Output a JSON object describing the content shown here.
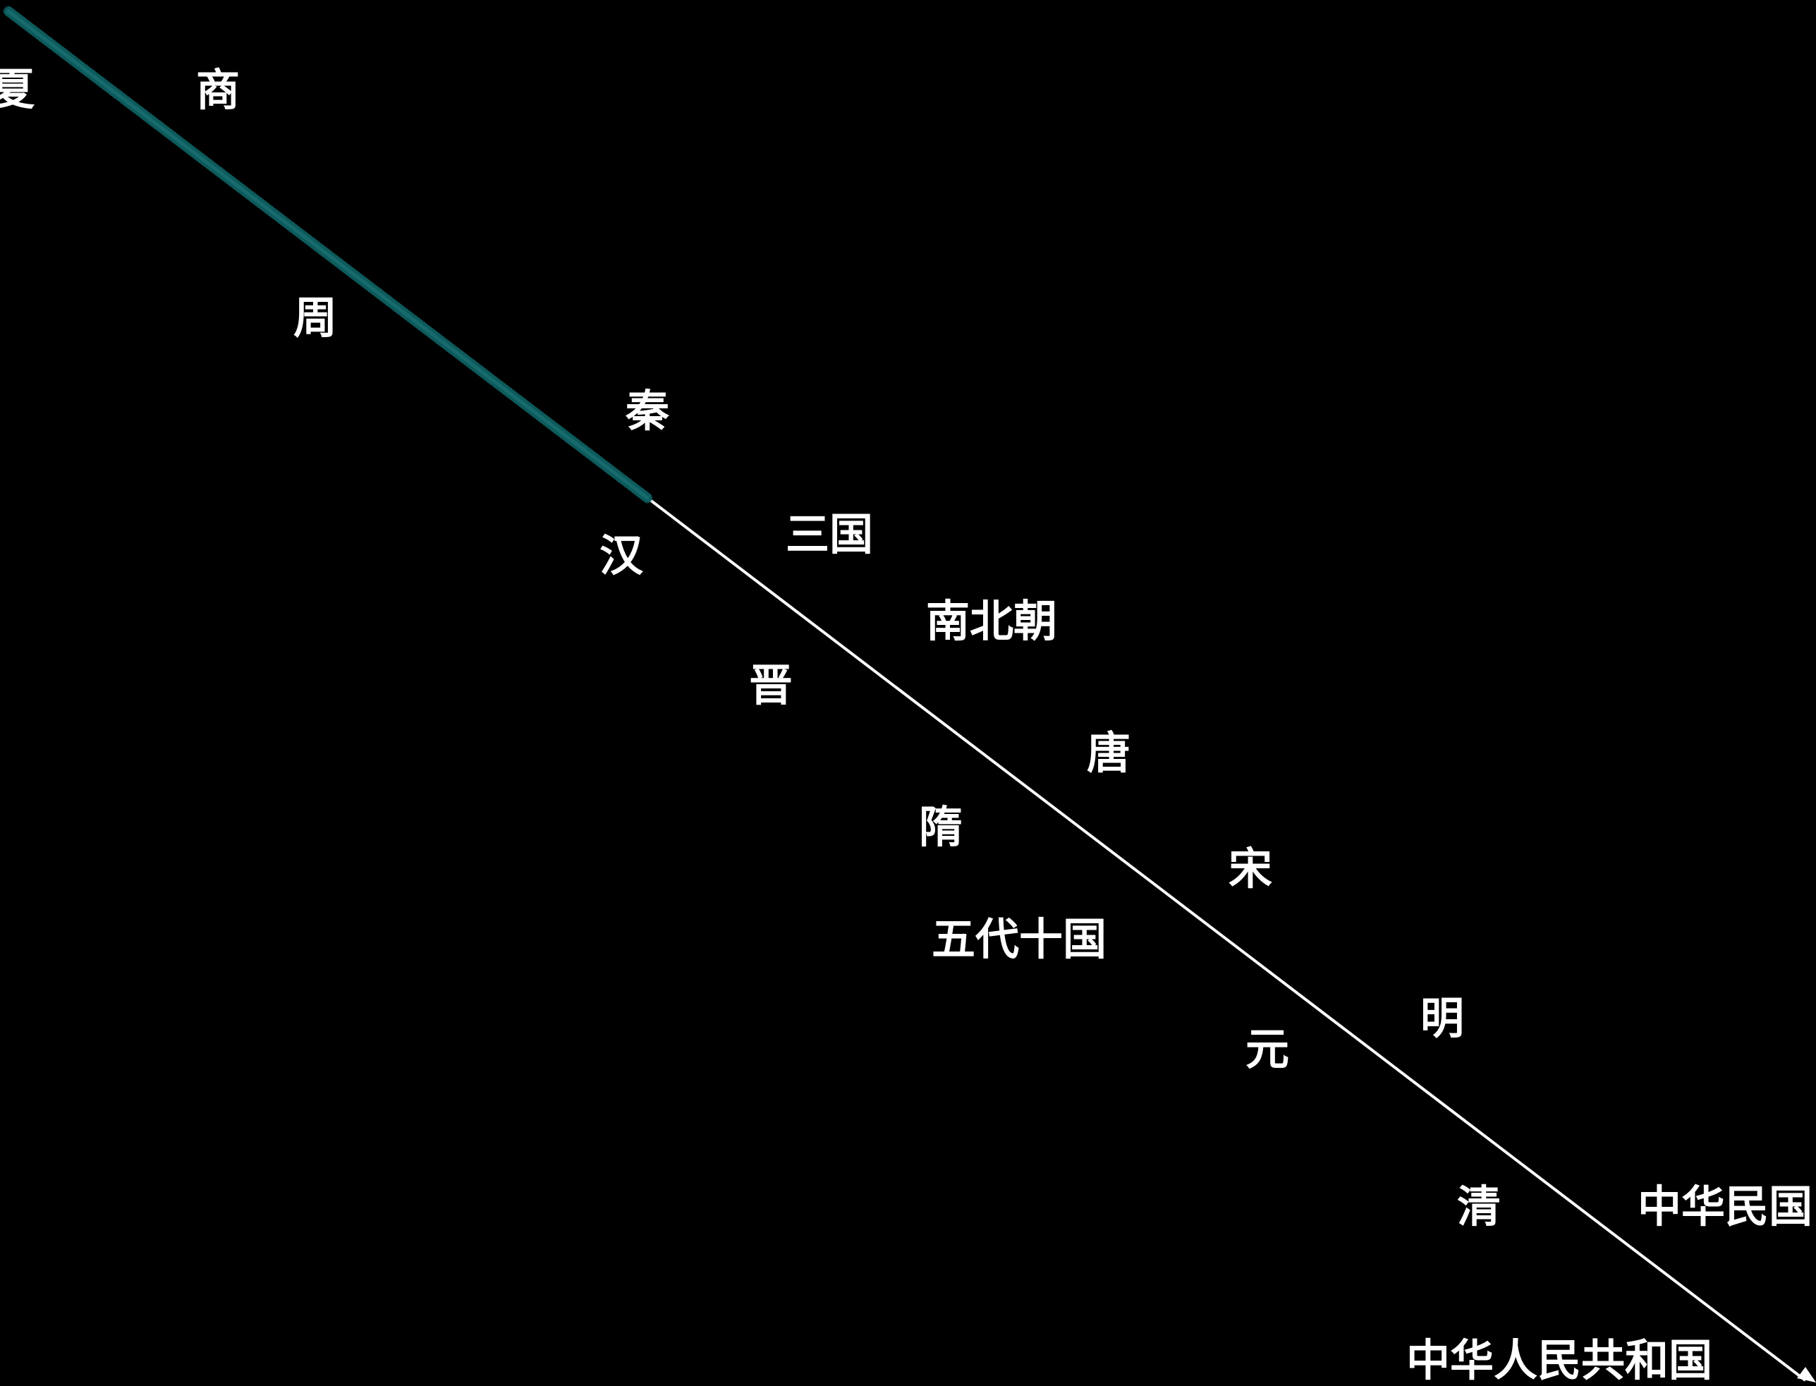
{
  "colors": {
    "background": "#000000",
    "timeline_line": "#ffffff",
    "highlight_stroke": "#0b5a5c",
    "label_text": "#ffffff"
  },
  "timeline": {
    "dynasties": [
      {
        "id": "xia",
        "label": "夏"
      },
      {
        "id": "shang",
        "label": "商"
      },
      {
        "id": "zhou",
        "label": "周"
      },
      {
        "id": "qin",
        "label": "秦"
      },
      {
        "id": "han",
        "label": "汉"
      },
      {
        "id": "sanguo",
        "label": "三国"
      },
      {
        "id": "jin",
        "label": "晋"
      },
      {
        "id": "nanbeichao",
        "label": "南北朝"
      },
      {
        "id": "sui",
        "label": "隋"
      },
      {
        "id": "tang",
        "label": "唐"
      },
      {
        "id": "wudai",
        "label": "五代十国"
      },
      {
        "id": "song",
        "label": "宋"
      },
      {
        "id": "yuan",
        "label": "元"
      },
      {
        "id": "ming",
        "label": "明"
      },
      {
        "id": "qing",
        "label": "清"
      },
      {
        "id": "minguo",
        "label": "中华民国"
      },
      {
        "id": "prc",
        "label": "中华人民共和国"
      }
    ],
    "highlighted_span": "夏 – 秦"
  }
}
